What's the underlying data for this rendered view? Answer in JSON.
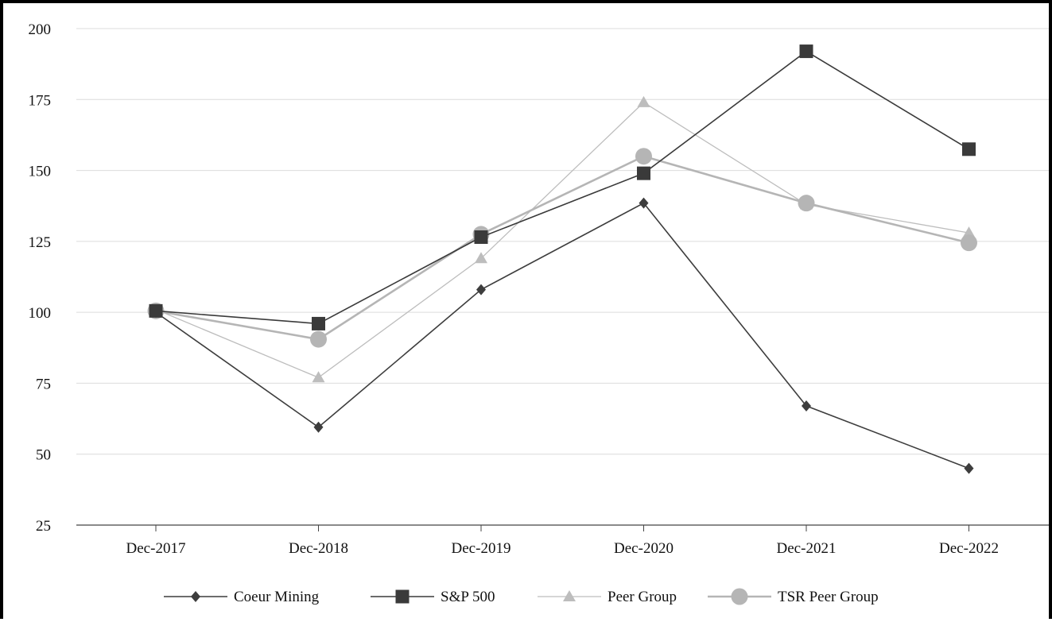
{
  "chart_data": {
    "type": "line",
    "title": "",
    "xlabel": "",
    "ylabel": "",
    "categories": [
      "Dec-2017",
      "Dec-2018",
      "Dec-2019",
      "Dec-2020",
      "Dec-2021",
      "Dec-2022"
    ],
    "ylim": [
      25,
      200
    ],
    "yticks": [
      25,
      50,
      75,
      100,
      125,
      150,
      175,
      200
    ],
    "grid": true,
    "legend_position": "bottom",
    "series": [
      {
        "name": "Coeur Mining",
        "values": [
          100,
          59.5,
          108,
          138.5,
          67,
          45
        ],
        "color": "#3d3d3d",
        "marker": "diamond"
      },
      {
        "name": "S&P 500",
        "values": [
          100.5,
          96,
          126.5,
          149,
          192,
          157.5
        ],
        "color": "#3a3a3a",
        "marker": "square"
      },
      {
        "name": "Peer Group",
        "values": [
          101,
          77,
          119,
          174,
          138,
          128
        ],
        "color": "#bdbdbd",
        "marker": "triangle"
      },
      {
        "name": "TSR Peer Group",
        "values": [
          100.5,
          90.5,
          127.5,
          155,
          138.5,
          124.5
        ],
        "color": "#b5b5b5",
        "marker": "circle"
      }
    ]
  }
}
